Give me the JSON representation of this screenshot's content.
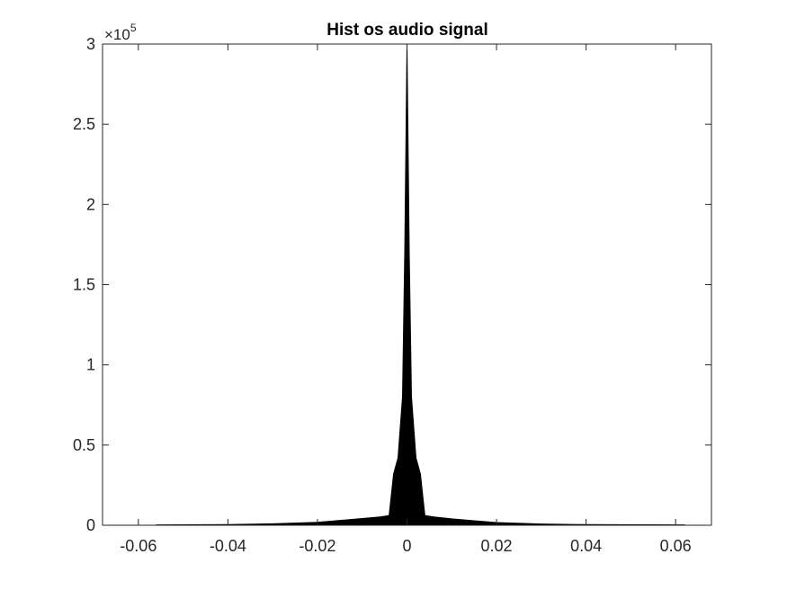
{
  "chart_data": {
    "type": "histogram",
    "title": "Hist os audio signal",
    "xlabel": "",
    "ylabel": "",
    "xlim": [
      -0.068,
      0.068
    ],
    "ylim": [
      0,
      300000
    ],
    "x_ticks": [
      -0.06,
      -0.04,
      -0.02,
      0,
      0.02,
      0.04,
      0.06
    ],
    "x_tick_labels": [
      "-0.06",
      "-0.04",
      "-0.02",
      "0",
      "0.02",
      "0.04",
      "0.06"
    ],
    "y_ticks": [
      0,
      50000,
      100000,
      150000,
      200000,
      250000,
      300000
    ],
    "y_tick_labels": [
      "0",
      "0.5",
      "1",
      "1.5",
      "2",
      "2.5",
      "3"
    ],
    "y_exponent": {
      "prefix": "×10",
      "power": "5"
    },
    "grid": false,
    "color": "#000000",
    "bins_x": [
      -0.056,
      -0.04,
      -0.03,
      -0.02,
      -0.015,
      -0.01,
      -0.006,
      -0.004,
      -0.003,
      -0.002,
      -0.001,
      -0.0005,
      0,
      0.0005,
      0.001,
      0.002,
      0.003,
      0.004,
      0.006,
      0.01,
      0.015,
      0.02,
      0.03,
      0.04,
      0.062
    ],
    "counts": [
      200,
      400,
      900,
      1800,
      3000,
      4200,
      5200,
      6000,
      32000,
      42000,
      80000,
      170000,
      300000,
      170000,
      80000,
      42000,
      32000,
      6000,
      5200,
      4000,
      2800,
      1700,
      800,
      400,
      200
    ]
  }
}
